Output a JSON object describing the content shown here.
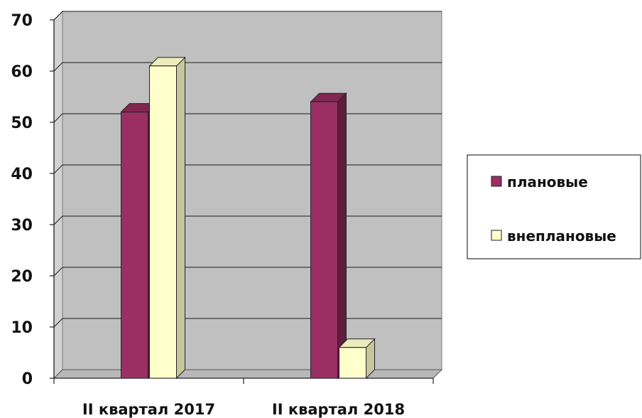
{
  "chart_data": {
    "type": "bar",
    "categories": [
      "II квартал 2017",
      "II квартал 2018"
    ],
    "series": [
      {
        "name": "плановые",
        "values": [
          52,
          54
        ]
      },
      {
        "name": "внеплановые",
        "values": [
          61,
          6
        ]
      }
    ],
    "ylim": [
      0,
      70
    ],
    "yticks": [
      0,
      10,
      20,
      30,
      40,
      50,
      60,
      70
    ],
    "grid": true,
    "legend_position": "right",
    "colors": {
      "плановые": "#9b2f63",
      "внеплановые": "#ffffcc",
      "plot_background": "#c0c0c0"
    }
  }
}
